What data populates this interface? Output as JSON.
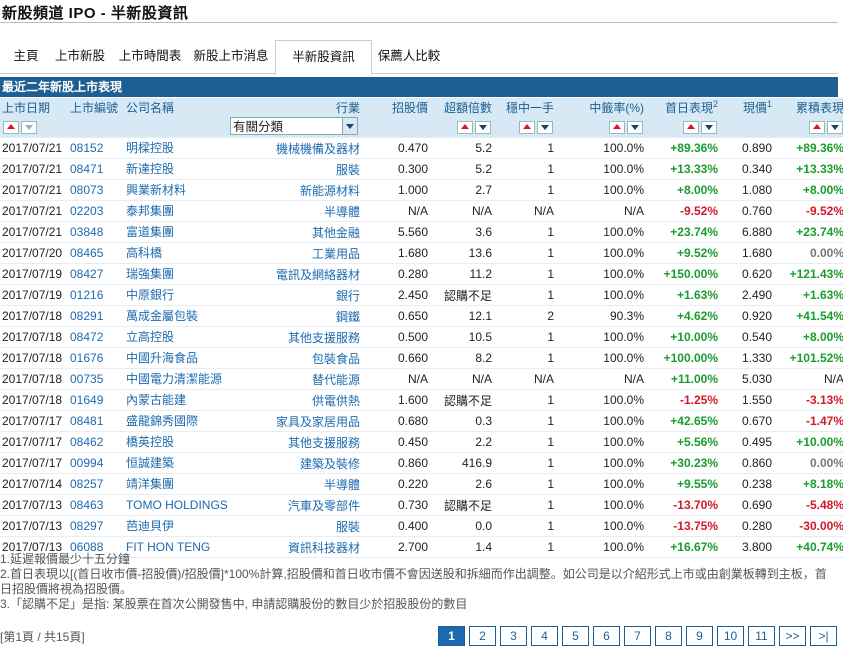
{
  "title": "新股頻道 IPO - 半新股資訊",
  "tabs": [
    "主頁",
    "上市新股",
    "上市時間表",
    "新股上市消息",
    "半新股資訊",
    "保薦人比較"
  ],
  "active_tab": "半新股資訊",
  "section_title": "最近二年新股上市表現",
  "columns": {
    "date": "上市日期",
    "code": "上市編號",
    "name": "公司名稱",
    "industry": "行業",
    "price": "招股價",
    "oversub": "超額倍數",
    "one_lot": "穩中一手",
    "rate": "中籤率(%)",
    "first_day": "首日表現",
    "first_day_sup": "2",
    "current": "現價",
    "current_sup": "1",
    "cumulative": "累積表現"
  },
  "industry_filter": "有關分類",
  "rows": [
    [
      "2017/07/21",
      "08152",
      "明樑控股",
      "機械機備及器材",
      "0.470",
      "5.2",
      "1",
      "100.0%",
      "+89.36%",
      "0.890",
      "+89.36%"
    ],
    [
      "2017/07/21",
      "08471",
      "新達控股",
      "服裝",
      "0.300",
      "5.2",
      "1",
      "100.0%",
      "+13.33%",
      "0.340",
      "+13.33%"
    ],
    [
      "2017/07/21",
      "08073",
      "興業新材料",
      "新能源材料",
      "1.000",
      "2.7",
      "1",
      "100.0%",
      "+8.00%",
      "1.080",
      "+8.00%"
    ],
    [
      "2017/07/21",
      "02203",
      "泰邦集團",
      "半導體",
      "N/A",
      "N/A",
      "N/A",
      "N/A",
      "-9.52%",
      "0.760",
      "-9.52%"
    ],
    [
      "2017/07/21",
      "03848",
      "富道集團",
      "其他金融",
      "5.560",
      "3.6",
      "1",
      "100.0%",
      "+23.74%",
      "6.880",
      "+23.74%"
    ],
    [
      "2017/07/20",
      "08465",
      "高科橋",
      "工業用品",
      "1.680",
      "13.6",
      "1",
      "100.0%",
      "+9.52%",
      "1.680",
      "0.00%"
    ],
    [
      "2017/07/19",
      "08427",
      "瑞強集團",
      "電訊及網絡器材",
      "0.280",
      "11.2",
      "1",
      "100.0%",
      "+150.00%",
      "0.620",
      "+121.43%"
    ],
    [
      "2017/07/19",
      "01216",
      "中原銀行",
      "銀行",
      "2.450",
      "認購不足",
      "1",
      "100.0%",
      "+1.63%",
      "2.490",
      "+1.63%"
    ],
    [
      "2017/07/18",
      "08291",
      "萬成金屬包裝",
      "鋼鐵",
      "0.650",
      "12.1",
      "2",
      "90.3%",
      "+4.62%",
      "0.920",
      "+41.54%"
    ],
    [
      "2017/07/18",
      "08472",
      "立高控股",
      "其他支援服務",
      "0.500",
      "10.5",
      "1",
      "100.0%",
      "+10.00%",
      "0.540",
      "+8.00%"
    ],
    [
      "2017/07/18",
      "01676",
      "中國升海食品",
      "包裝食品",
      "0.660",
      "8.2",
      "1",
      "100.0%",
      "+100.00%",
      "1.330",
      "+101.52%"
    ],
    [
      "2017/07/18",
      "00735",
      "中國電力清潔能源",
      "替代能源",
      "N/A",
      "N/A",
      "N/A",
      "N/A",
      "+11.00%",
      "5.030",
      "N/A"
    ],
    [
      "2017/07/18",
      "01649",
      "內蒙古能建",
      "供電供熱",
      "1.600",
      "認購不足",
      "1",
      "100.0%",
      "-1.25%",
      "1.550",
      "-3.13%"
    ],
    [
      "2017/07/17",
      "08481",
      "盛龍錦秀國際",
      "家具及家居用品",
      "0.680",
      "0.3",
      "1",
      "100.0%",
      "+42.65%",
      "0.670",
      "-1.47%"
    ],
    [
      "2017/07/17",
      "08462",
      "橋英控股",
      "其他支援服務",
      "0.450",
      "2.2",
      "1",
      "100.0%",
      "+5.56%",
      "0.495",
      "+10.00%"
    ],
    [
      "2017/07/17",
      "00994",
      "恒誠建築",
      "建築及裝修",
      "0.860",
      "416.9",
      "1",
      "100.0%",
      "+30.23%",
      "0.860",
      "0.00%"
    ],
    [
      "2017/07/14",
      "08257",
      "靖洋集團",
      "半導體",
      "0.220",
      "2.6",
      "1",
      "100.0%",
      "+9.55%",
      "0.238",
      "+8.18%"
    ],
    [
      "2017/07/13",
      "08463",
      "TOMO HOLDINGS",
      "汽車及零部件",
      "0.730",
      "認購不足",
      "1",
      "100.0%",
      "-13.70%",
      "0.690",
      "-5.48%"
    ],
    [
      "2017/07/13",
      "08297",
      "芭迪貝伊",
      "服裝",
      "0.400",
      "0.0",
      "1",
      "100.0%",
      "-13.75%",
      "0.280",
      "-30.00%"
    ],
    [
      "2017/07/13",
      "06088",
      "FIT HON TENG",
      "資訊科技器材",
      "2.700",
      "1.4",
      "1",
      "100.0%",
      "+16.67%",
      "3.800",
      "+40.74%"
    ]
  ],
  "notes": [
    "1.延遲報價最少十五分鐘",
    "2.首日表現以[(首日收市價-招股價)/招股價]*100%計算,招股價和首日收市價不會因送股和拆細而作出調整。如公司是以介紹形式上市或由創業板轉到主板，首日招股價將視為招股價。",
    "3.「認購不足」是指: 某股票在首次公開發售中, 申請認購股份的數目少於招股股份的數目"
  ],
  "pager_info": "[第1頁 / 共15頁]",
  "pages": [
    "1",
    "2",
    "3",
    "4",
    "5",
    "6",
    "7",
    "8",
    "9",
    "10",
    "11",
    ">>",
    ">|"
  ],
  "colors": {
    "header_blue": "#1d5f92",
    "header_bg": "#d7e9f4",
    "positive": "#1a9c2f",
    "negative": "#d3182a",
    "link": "#1d6ab0"
  }
}
